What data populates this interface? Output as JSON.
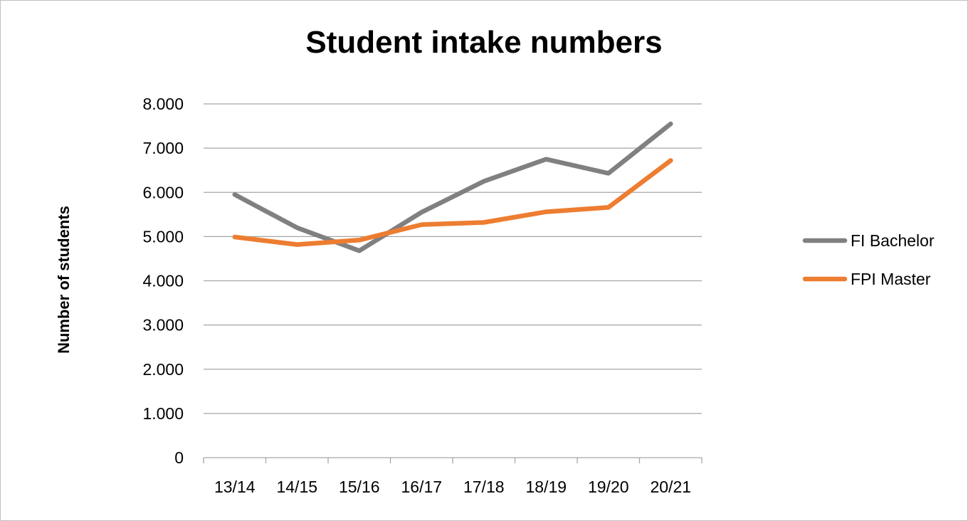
{
  "chart_data": {
    "type": "line",
    "title": "Student intake numbers",
    "xlabel": "",
    "ylabel": "Number of students",
    "categories": [
      "13/14",
      "14/15",
      "15/16",
      "16/17",
      "17/18",
      "18/19",
      "19/20",
      "20/21"
    ],
    "series": [
      {
        "name": "FI Bachelor",
        "color": "#808080",
        "values": [
          5950,
          5200,
          4680,
          5550,
          6250,
          6750,
          6430,
          7550
        ]
      },
      {
        "name": "FPI Master",
        "color": "#ed7d31",
        "values": [
          4990,
          4820,
          4920,
          5270,
          5320,
          5560,
          5660,
          6720
        ]
      }
    ],
    "ylim": [
      0,
      8000
    ],
    "yticks": [
      0,
      1000,
      2000,
      3000,
      4000,
      5000,
      6000,
      7000,
      8000
    ],
    "ytick_labels": [
      "0",
      "1.000",
      "2.000",
      "3.000",
      "4.000",
      "5.000",
      "6.000",
      "7.000",
      "8.000"
    ],
    "grid": true,
    "legend_position": "right"
  }
}
